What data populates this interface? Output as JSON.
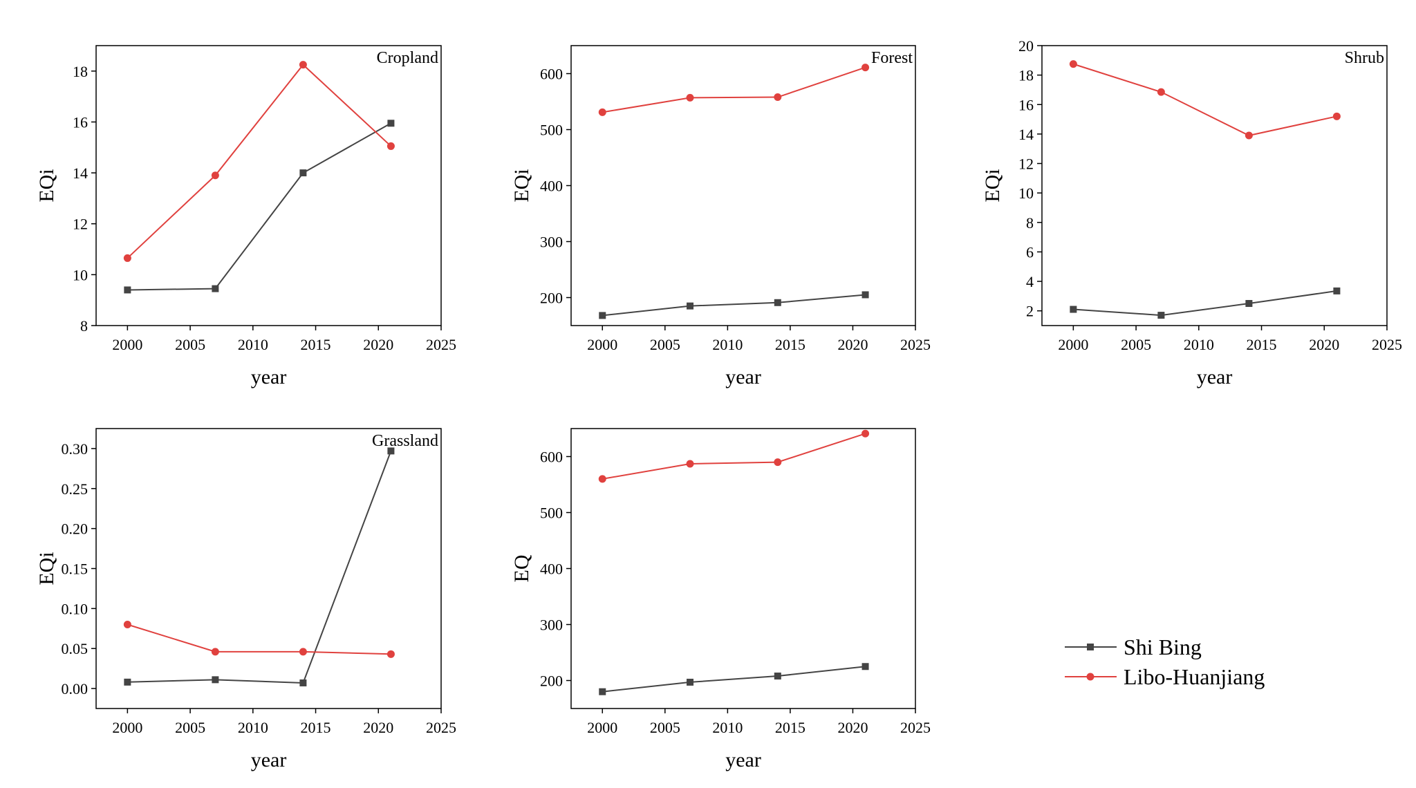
{
  "chart_data": [
    {
      "type": "line",
      "panel_label": "Cropland",
      "xlabel": "year",
      "ylabel": "EQi",
      "xlim": [
        1997.5,
        2025
      ],
      "ylim": [
        8,
        19
      ],
      "xticks": [
        2000,
        2005,
        2010,
        2015,
        2020,
        2025
      ],
      "yticks": [
        8,
        10,
        12,
        14,
        16,
        18
      ],
      "ytick_labels": [
        "8",
        "10",
        "12",
        "14",
        "16",
        "18"
      ],
      "x": [
        2000,
        2007,
        2014,
        2021
      ],
      "series": [
        {
          "name": "Shi Bing",
          "values": [
            9.4,
            9.45,
            14.0,
            15.95
          ]
        },
        {
          "name": "Libo-Huanjiang",
          "values": [
            10.65,
            13.9,
            18.25,
            15.05
          ]
        }
      ]
    },
    {
      "type": "line",
      "panel_label": "Forest",
      "xlabel": "year",
      "ylabel": "EQi",
      "xlim": [
        1997.5,
        2025
      ],
      "ylim": [
        150,
        650
      ],
      "xticks": [
        2000,
        2005,
        2010,
        2015,
        2020,
        2025
      ],
      "yticks": [
        200,
        300,
        400,
        500,
        600
      ],
      "ytick_labels": [
        "200",
        "300",
        "400",
        "500",
        "600"
      ],
      "x": [
        2000,
        2007,
        2014,
        2021
      ],
      "series": [
        {
          "name": "Shi Bing",
          "values": [
            168,
            185,
            191,
            205
          ]
        },
        {
          "name": "Libo-Huanjiang",
          "values": [
            531,
            557,
            558,
            611
          ]
        }
      ]
    },
    {
      "type": "line",
      "panel_label": "Shrub",
      "xlabel": "year",
      "ylabel": "EQi",
      "xlim": [
        1997.5,
        2025
      ],
      "ylim": [
        1,
        20
      ],
      "xticks": [
        2000,
        2005,
        2010,
        2015,
        2020,
        2025
      ],
      "yticks": [
        2,
        4,
        6,
        8,
        10,
        12,
        14,
        16,
        18,
        20
      ],
      "ytick_labels": [
        "2",
        "4",
        "6",
        "8",
        "10",
        "12",
        "14",
        "16",
        "18",
        "20"
      ],
      "x": [
        2000,
        2007,
        2014,
        2021
      ],
      "series": [
        {
          "name": "Shi Bing",
          "values": [
            2.1,
            1.7,
            2.5,
            3.35
          ]
        },
        {
          "name": "Libo-Huanjiang",
          "values": [
            18.75,
            16.85,
            13.9,
            15.2
          ]
        }
      ]
    },
    {
      "type": "line",
      "panel_label": "Grassland",
      "xlabel": "year",
      "ylabel": "EQi",
      "xlim": [
        1997.5,
        2025
      ],
      "ylim": [
        -0.025,
        0.325
      ],
      "xticks": [
        2000,
        2005,
        2010,
        2015,
        2020,
        2025
      ],
      "yticks": [
        0,
        0.05,
        0.1,
        0.15,
        0.2,
        0.25,
        0.3
      ],
      "ytick_labels": [
        "0.00",
        "0.05",
        "0.10",
        "0.15",
        "0.20",
        "0.25",
        "0.30"
      ],
      "x": [
        2000,
        2007,
        2014,
        2021
      ],
      "series": [
        {
          "name": "Shi Bing",
          "values": [
            0.008,
            0.011,
            0.007,
            0.297
          ]
        },
        {
          "name": "Libo-Huanjiang",
          "values": [
            0.08,
            0.046,
            0.046,
            0.043
          ]
        }
      ]
    },
    {
      "type": "line",
      "panel_label": "",
      "xlabel": "year",
      "ylabel": "EQ",
      "xlim": [
        1997.5,
        2025
      ],
      "ylim": [
        150,
        650
      ],
      "xticks": [
        2000,
        2005,
        2010,
        2015,
        2020,
        2025
      ],
      "yticks": [
        200,
        300,
        400,
        500,
        600
      ],
      "ytick_labels": [
        "200",
        "300",
        "400",
        "500",
        "600"
      ],
      "x": [
        2000,
        2007,
        2014,
        2021
      ],
      "series": [
        {
          "name": "Shi Bing",
          "values": [
            180,
            197,
            208,
            225
          ]
        },
        {
          "name": "Libo-Huanjiang",
          "values": [
            560,
            587,
            590,
            641
          ]
        }
      ]
    }
  ],
  "legend": {
    "items": [
      {
        "name": "Shi Bing",
        "color": "#444444",
        "marker": "square"
      },
      {
        "name": "Libo-Huanjiang",
        "color": "#e0413e",
        "marker": "circle"
      }
    ]
  },
  "colors": {
    "Shi Bing": "#444444",
    "Libo-Huanjiang": "#e0413e",
    "axis": "#000000"
  }
}
